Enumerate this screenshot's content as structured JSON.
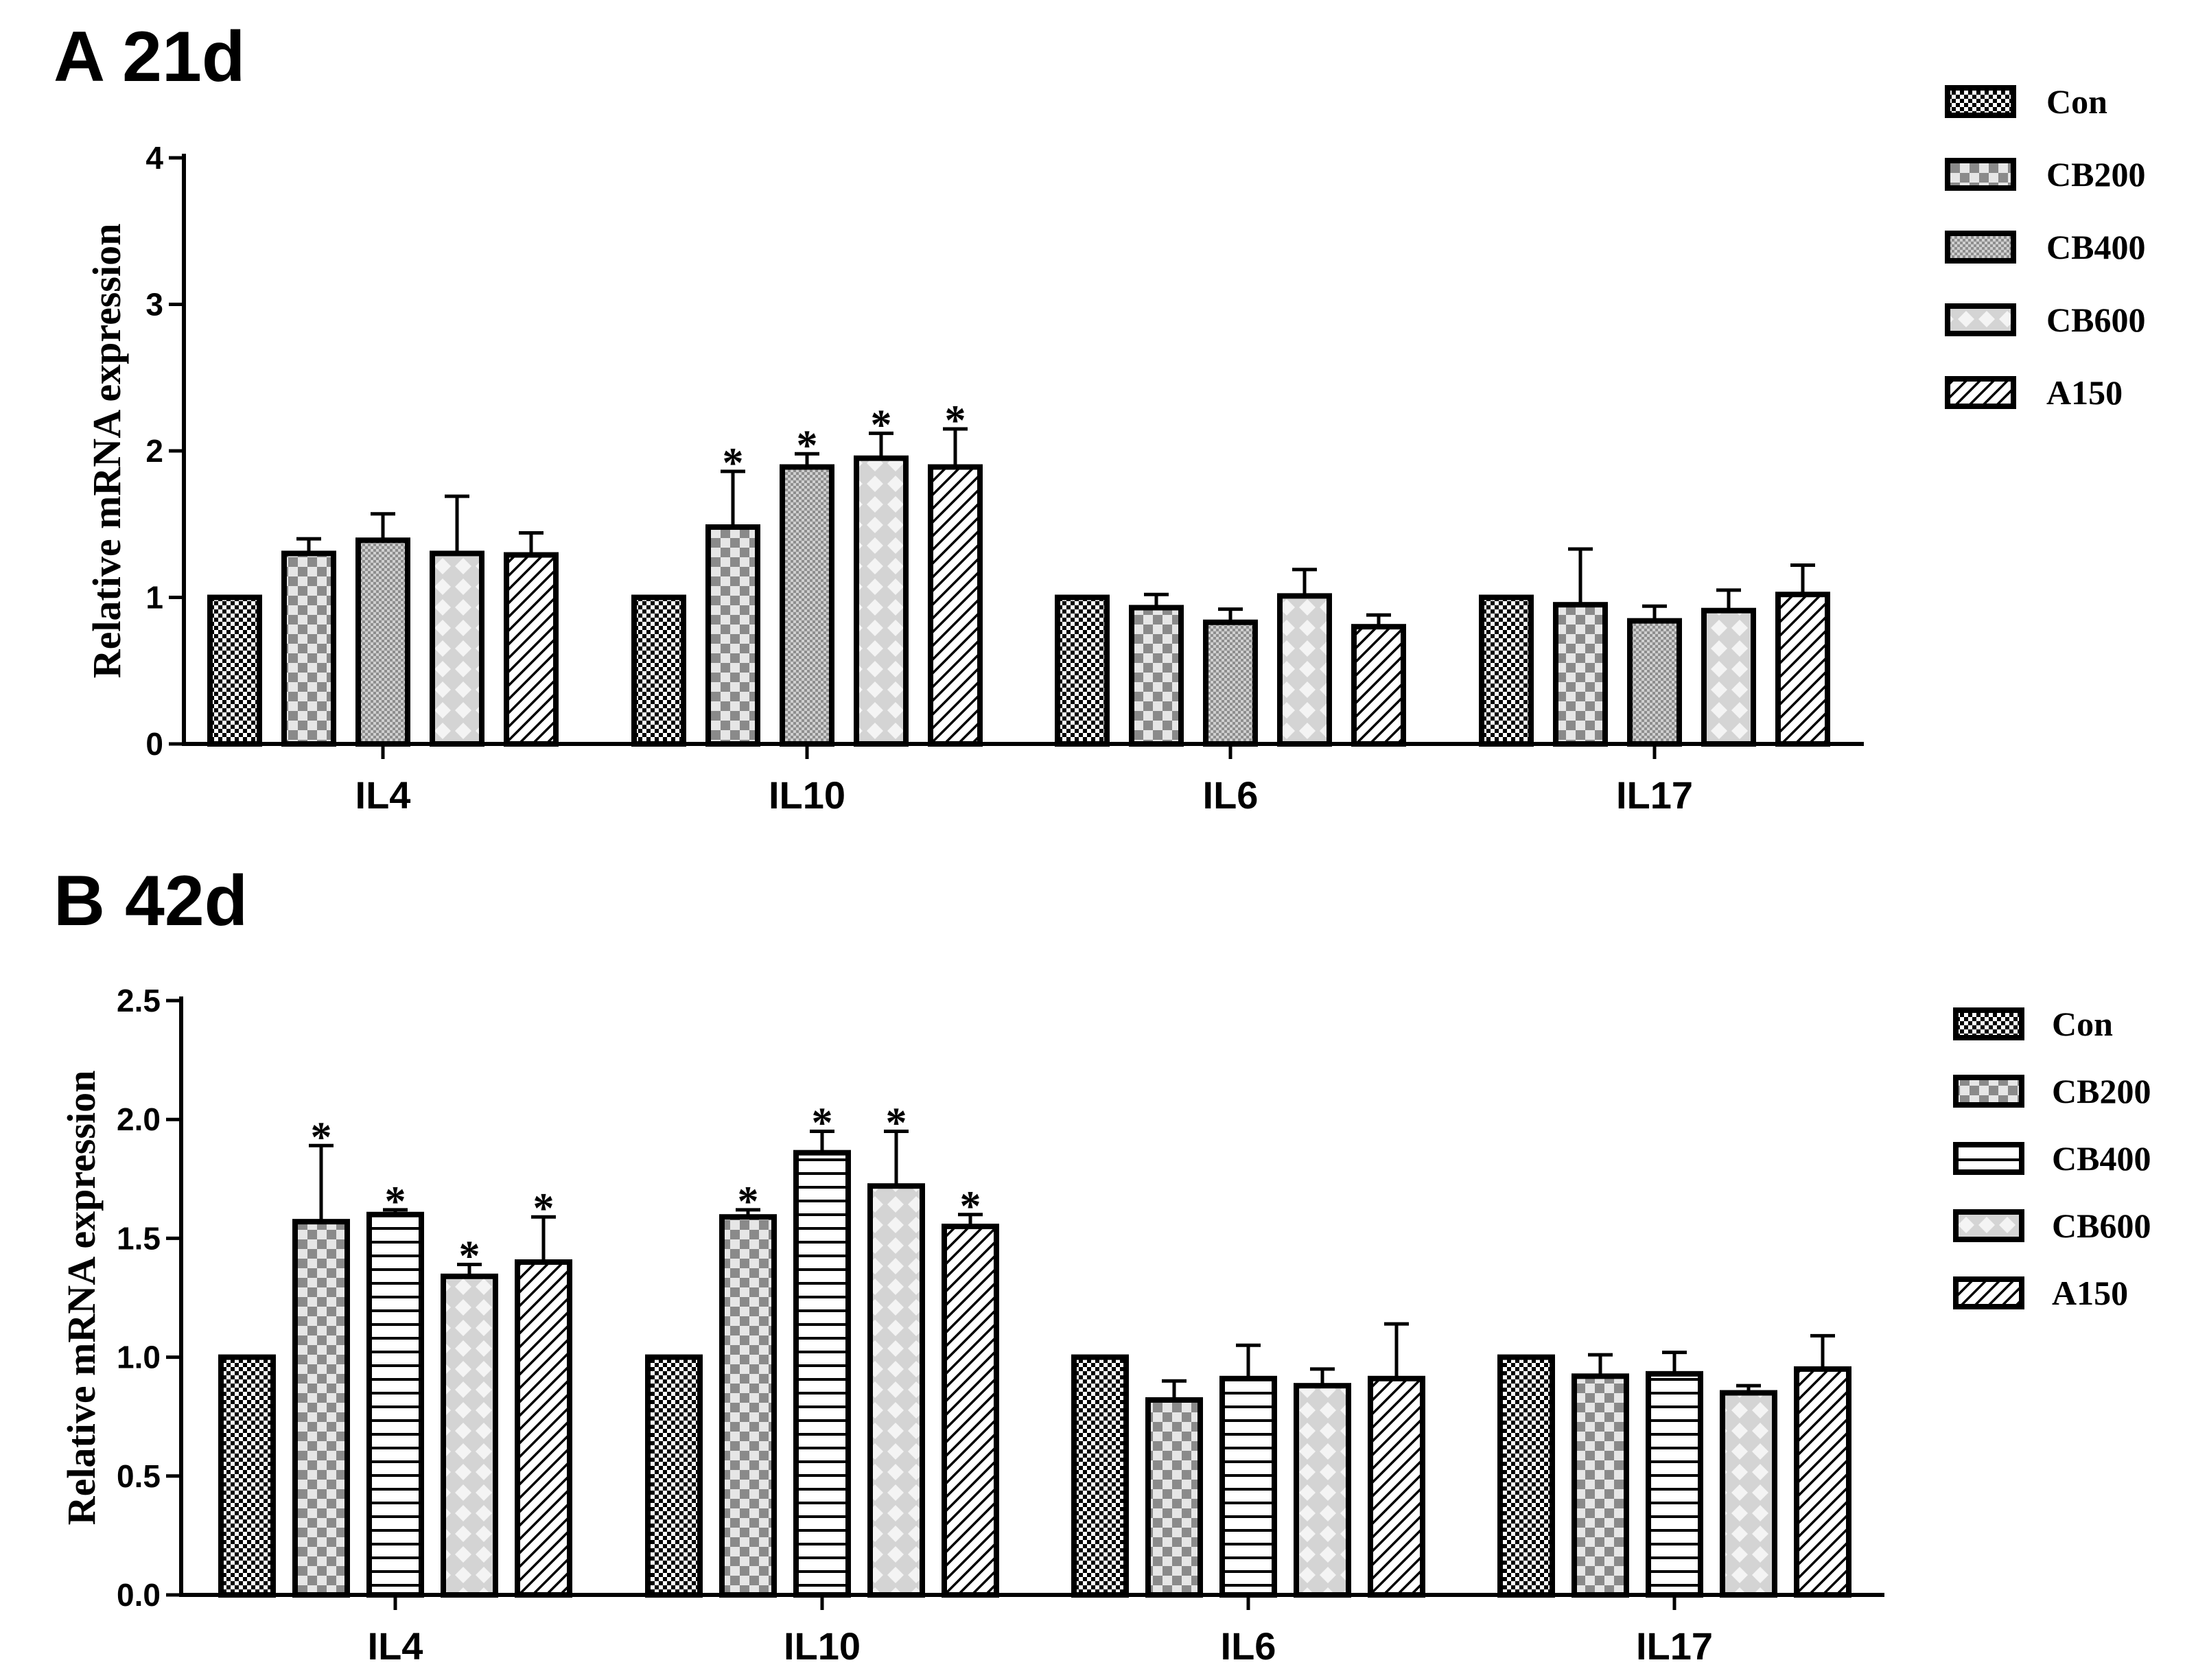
{
  "figure": {
    "background": "#ffffff",
    "ink": "#000000"
  },
  "chart_data": [
    {
      "panel_label": "A 21d",
      "type": "bar",
      "ylabel": "Relative mRNA expression",
      "xlabel": "",
      "ylim": [
        0,
        4
      ],
      "yticks": [
        "0",
        "1",
        "2",
        "3",
        "4"
      ],
      "ytick_values": [
        0,
        1,
        2,
        3,
        4
      ],
      "categories": [
        "IL4",
        "IL10",
        "IL6",
        "IL17"
      ],
      "legend_position": "top-right",
      "series": [
        {
          "name": "Con",
          "pattern": "checker",
          "values": [
            1.0,
            1.0,
            1.0,
            1.0
          ],
          "errors": [
            0,
            0,
            0,
            0
          ],
          "sig": [
            false,
            false,
            false,
            false
          ]
        },
        {
          "name": "CB200",
          "pattern": "checker2",
          "values": [
            1.3,
            1.48,
            0.93,
            0.95
          ],
          "errors": [
            0.1,
            0.38,
            0.09,
            0.38
          ],
          "sig": [
            false,
            true,
            false,
            false
          ]
        },
        {
          "name": "CB400",
          "pattern": "dots",
          "values": [
            1.39,
            1.89,
            0.83,
            0.84
          ],
          "errors": [
            0.18,
            0.09,
            0.09,
            0.1
          ],
          "sig": [
            false,
            true,
            false,
            false
          ]
        },
        {
          "name": "CB600",
          "pattern": "diamond",
          "values": [
            1.3,
            1.95,
            1.01,
            0.91
          ],
          "errors": [
            0.39,
            0.17,
            0.18,
            0.14
          ],
          "sig": [
            false,
            true,
            false,
            false
          ]
        },
        {
          "name": "A150",
          "pattern": "diag",
          "values": [
            1.29,
            1.89,
            0.8,
            1.02
          ],
          "errors": [
            0.15,
            0.26,
            0.08,
            0.2
          ],
          "sig": [
            false,
            true,
            false,
            false
          ]
        }
      ]
    },
    {
      "panel_label": "B 42d",
      "type": "bar",
      "ylabel": "Relative mRNA expression",
      "xlabel": "",
      "ylim": [
        0,
        2.5
      ],
      "yticks": [
        "0.0",
        "0.5",
        "1.0",
        "1.5",
        "2.0",
        "2.5"
      ],
      "ytick_values": [
        0,
        0.5,
        1.0,
        1.5,
        2.0,
        2.5
      ],
      "categories": [
        "IL4",
        "IL10",
        "IL6",
        "IL17"
      ],
      "legend_position": "right",
      "series": [
        {
          "name": "Con",
          "pattern": "checker",
          "values": [
            1.0,
            1.0,
            1.0,
            1.0
          ],
          "errors": [
            0,
            0,
            0,
            0
          ],
          "sig": [
            false,
            false,
            false,
            false
          ]
        },
        {
          "name": "CB200",
          "pattern": "checker2",
          "values": [
            1.57,
            1.59,
            0.82,
            0.92
          ],
          "errors": [
            0.32,
            0.03,
            0.08,
            0.09
          ],
          "sig": [
            true,
            true,
            false,
            false
          ]
        },
        {
          "name": "CB400",
          "pattern": "hlines",
          "values": [
            1.6,
            1.86,
            0.91,
            0.93
          ],
          "errors": [
            0.02,
            0.09,
            0.14,
            0.09
          ],
          "sig": [
            true,
            true,
            false,
            false
          ]
        },
        {
          "name": "CB600",
          "pattern": "diamond",
          "values": [
            1.34,
            1.72,
            0.88,
            0.85
          ],
          "errors": [
            0.05,
            0.23,
            0.07,
            0.03
          ],
          "sig": [
            true,
            true,
            false,
            false
          ]
        },
        {
          "name": "A150",
          "pattern": "diag",
          "values": [
            1.4,
            1.55,
            0.91,
            0.95
          ],
          "errors": [
            0.19,
            0.05,
            0.23,
            0.14
          ],
          "sig": [
            true,
            true,
            false,
            false
          ]
        }
      ]
    }
  ]
}
